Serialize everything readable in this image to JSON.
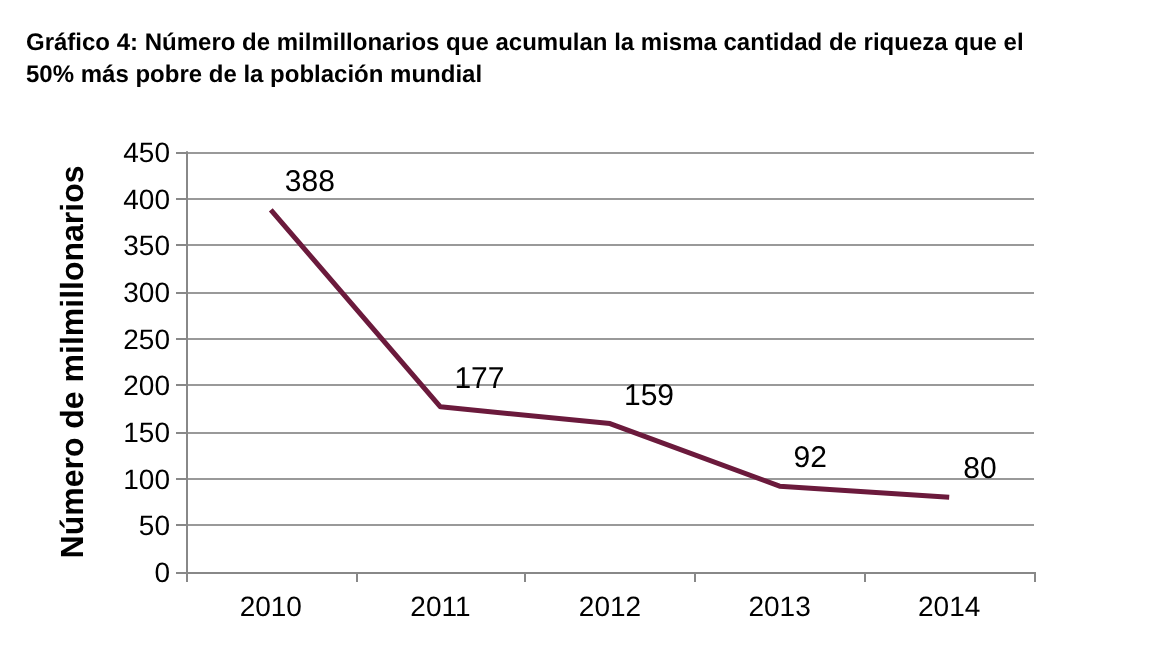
{
  "chart_data": {
    "type": "line",
    "title": "Gráfico 4: Número de milmillonarios que acumulan la misma cantidad de riqueza que el 50% más pobre de la población mundial",
    "categories": [
      "2010",
      "2011",
      "2012",
      "2013",
      "2014"
    ],
    "series": [
      {
        "color": "#6b1a3c",
        "values": [
          388,
          177,
          159,
          92,
          80
        ]
      }
    ],
    "ylabel": "Número de milmillonarios",
    "ylim": [
      0,
      450
    ],
    "yticks": [
      0,
      50,
      100,
      150,
      200,
      250,
      300,
      350,
      400,
      450
    ],
    "grid": "y",
    "data_labels": true,
    "marker": "none",
    "line_style": "solid"
  }
}
